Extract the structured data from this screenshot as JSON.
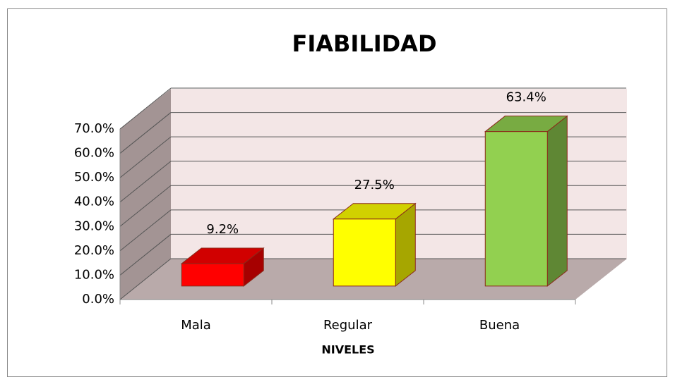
{
  "chart_data": {
    "type": "bar3d",
    "title": "FIABILIDAD",
    "x_label": "NIVELES",
    "categories": [
      "Mala",
      "Regular",
      "Buena"
    ],
    "values": [
      9.2,
      27.5,
      63.4
    ],
    "value_labels": [
      "9.2%",
      "27.5%",
      "63.4%"
    ],
    "colors": [
      "#ff0000",
      "#ffff00",
      "#92d050"
    ],
    "ylim": [
      0,
      70
    ],
    "yticks": [
      {
        "value": 0,
        "label": "0.0%"
      },
      {
        "value": 10,
        "label": "10.0%"
      },
      {
        "value": 20,
        "label": "20.0%"
      },
      {
        "value": 30,
        "label": "30.0%"
      },
      {
        "value": 40,
        "label": "40.0%"
      },
      {
        "value": 50,
        "label": "50.0%"
      },
      {
        "value": 60,
        "label": "60.0%"
      },
      {
        "value": 70,
        "label": "70.0%"
      }
    ],
    "grid": true
  }
}
